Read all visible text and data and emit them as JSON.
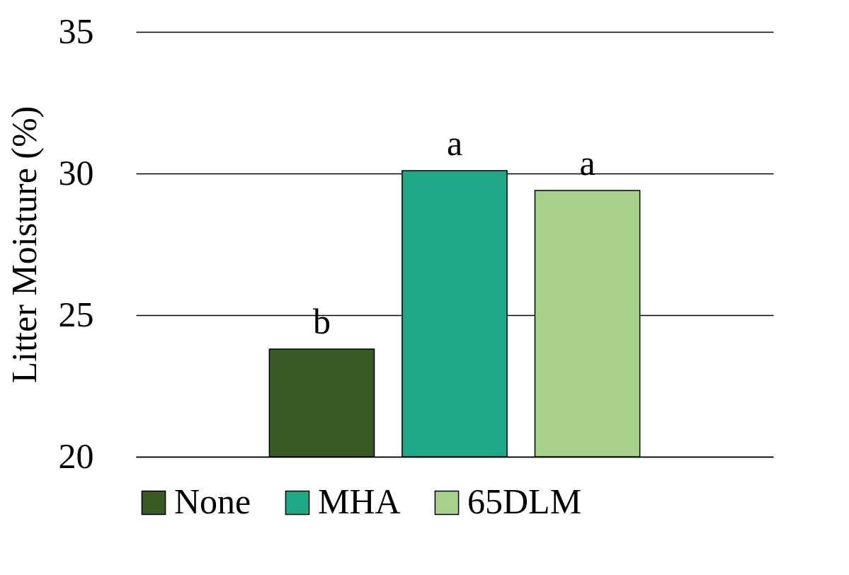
{
  "chart_data": {
    "type": "bar",
    "ylabel": "Litter Moisture (%)",
    "categories": [
      null
    ],
    "series": [
      {
        "name": "None",
        "color": "#3c5a24",
        "values": [
          23.8
        ]
      },
      {
        "name": "MHA",
        "color": "#1fa886",
        "values": [
          30.1
        ]
      },
      {
        "name": "65DLM",
        "color": "#a8d18c",
        "values": [
          29.4
        ]
      }
    ],
    "annotations": [
      "b",
      "a",
      "a"
    ],
    "ylim": [
      20,
      35
    ],
    "yticks": [
      20,
      25,
      30,
      35
    ],
    "grid": "y",
    "legend": "bottom"
  }
}
